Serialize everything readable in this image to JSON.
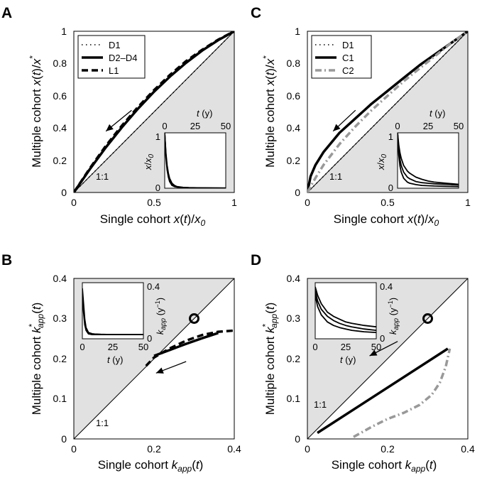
{
  "chart_data": [
    {
      "panel": "A",
      "type": "line",
      "xlabel": "Single cohort x(t)/x0",
      "ylabel": "Multiple cohort x(t)/x*",
      "xlim": [
        0,
        1
      ],
      "ylim": [
        0,
        1
      ],
      "xticks": [
        "0",
        "0.5",
        "1"
      ],
      "yticks": [
        "0",
        "0.2",
        "0.4",
        "0.6",
        "0.8",
        "1"
      ],
      "shade": "below-1:1",
      "ref_label": "1:1",
      "legend": "top-left",
      "series": [
        {
          "name": "D1",
          "style": "dotted",
          "color": "#000000",
          "x": [
            0,
            1
          ],
          "y": [
            0,
            1
          ]
        },
        {
          "name": "D2–D4",
          "style": "solid",
          "color": "#000000",
          "x": [
            0,
            0.1,
            0.2,
            0.3,
            0.4,
            0.5,
            0.6,
            0.7,
            0.8,
            0.9,
            1.0
          ],
          "y": [
            0,
            0.145,
            0.28,
            0.405,
            0.52,
            0.625,
            0.72,
            0.805,
            0.88,
            0.945,
            1.0
          ]
        },
        {
          "name": "L1",
          "style": "dashed",
          "color": "#000000",
          "x": [
            0,
            0.1,
            0.2,
            0.3,
            0.4,
            0.5,
            0.6,
            0.7,
            0.8,
            0.9,
            1.0
          ],
          "y": [
            0,
            0.15,
            0.29,
            0.415,
            0.53,
            0.635,
            0.73,
            0.815,
            0.885,
            0.948,
            1.0
          ]
        }
      ],
      "arrow": {
        "from": [
          0.36,
          0.51
        ],
        "to": [
          0.2,
          0.38
        ]
      },
      "inset": {
        "xlabel": "t (y)",
        "ylabel": "x/x0",
        "xlim": [
          0,
          50
        ],
        "ylim": [
          0,
          1
        ],
        "xticks": [
          "0",
          "25",
          "50"
        ],
        "yticks": [
          "0",
          "1"
        ],
        "series": [
          {
            "x": [
              0,
              1,
              2,
              3,
              4,
              6,
              8,
              10,
              15,
              20,
              30,
              40,
              50
            ],
            "y": [
              1,
              0.64,
              0.41,
              0.27,
              0.18,
              0.09,
              0.05,
              0.03,
              0.015,
              0.01,
              0.006,
              0.004,
              0.003
            ]
          },
          {
            "x": [
              0,
              1,
              2,
              3,
              4,
              6,
              8,
              10,
              15,
              20,
              30,
              40,
              50
            ],
            "y": [
              1,
              0.6,
              0.37,
              0.23,
              0.15,
              0.07,
              0.04,
              0.025,
              0.012,
              0.008,
              0.005,
              0.003,
              0.002
            ]
          },
          {
            "x": [
              0,
              1,
              2,
              3,
              4,
              6,
              8,
              10,
              15,
              20,
              30,
              40,
              50
            ],
            "y": [
              1,
              0.56,
              0.33,
              0.2,
              0.12,
              0.05,
              0.03,
              0.02,
              0.01,
              0.006,
              0.004,
              0.002,
              0.001
            ]
          }
        ]
      }
    },
    {
      "panel": "C",
      "type": "line",
      "xlabel": "Single cohort x(t)/x0",
      "ylabel": "Multiple cohort x(t)/x*",
      "xlim": [
        0,
        1
      ],
      "ylim": [
        0,
        1
      ],
      "xticks": [
        "0",
        "0.5",
        "1"
      ],
      "yticks": [
        "0",
        "0.2",
        "0.4",
        "0.6",
        "0.8",
        "1"
      ],
      "shade": "below-1:1",
      "ref_label": "1:1",
      "legend": "top-left",
      "series": [
        {
          "name": "D1",
          "style": "dotted",
          "color": "#000000",
          "x": [
            0,
            1
          ],
          "y": [
            0,
            1
          ]
        },
        {
          "name": "C1",
          "style": "solid",
          "color": "#000000",
          "x": [
            0,
            0.02,
            0.05,
            0.1,
            0.2,
            0.3,
            0.4,
            0.5,
            0.6,
            0.7,
            0.8,
            0.9,
            1.0
          ],
          "y": [
            0,
            0.1,
            0.17,
            0.25,
            0.37,
            0.46,
            0.55,
            0.63,
            0.71,
            0.79,
            0.86,
            0.93,
            1.0
          ]
        },
        {
          "name": "C2",
          "style": "dashdot",
          "color": "#999999",
          "x": [
            0,
            0.05,
            0.1,
            0.2,
            0.3,
            0.4,
            0.5,
            0.6,
            0.7,
            0.8,
            0.9,
            1.0
          ],
          "y": [
            0,
            0.09,
            0.17,
            0.3,
            0.41,
            0.51,
            0.6,
            0.69,
            0.77,
            0.85,
            0.93,
            1.0
          ]
        }
      ],
      "arrow": {
        "from": [
          0.3,
          0.51
        ],
        "to": [
          0.16,
          0.38
        ]
      },
      "inset": {
        "xlabel": "t (y)",
        "ylabel": "x/x0",
        "xlim": [
          0,
          50
        ],
        "ylim": [
          0,
          1
        ],
        "xticks": [
          "0",
          "25",
          "50"
        ],
        "yticks": [
          "0",
          "1"
        ],
        "series": [
          {
            "x": [
              0,
              1,
              2,
              3,
              5,
              8,
              10,
              15,
              20,
              25,
              30,
              40,
              50
            ],
            "y": [
              1,
              0.7,
              0.52,
              0.41,
              0.29,
              0.2,
              0.17,
              0.12,
              0.1,
              0.09,
              0.08,
              0.07,
              0.06
            ]
          },
          {
            "x": [
              0,
              1,
              2,
              3,
              5,
              8,
              10,
              15,
              20,
              25,
              30,
              40,
              50
            ],
            "y": [
              1,
              0.6,
              0.4,
              0.29,
              0.18,
              0.11,
              0.09,
              0.065,
              0.05,
              0.045,
              0.04,
              0.035,
              0.03
            ]
          },
          {
            "x": [
              0,
              1,
              2,
              3,
              5,
              8,
              10,
              15,
              20,
              25,
              30,
              40,
              50
            ],
            "y": [
              1,
              0.78,
              0.64,
              0.54,
              0.41,
              0.31,
              0.27,
              0.2,
              0.16,
              0.13,
              0.11,
              0.09,
              0.07
            ]
          }
        ]
      }
    },
    {
      "panel": "B",
      "type": "line",
      "xlabel": "Single cohort kapp(t)",
      "ylabel": "Multiple cohort k*app(t)",
      "xlim": [
        0,
        0.4
      ],
      "ylim": [
        0,
        0.4
      ],
      "xticks": [
        "0",
        "0.2",
        "0.4"
      ],
      "yticks": [
        "0",
        "0.1",
        "0.2",
        "0.3",
        "0.4"
      ],
      "shade": "above-1:1",
      "ref_label": "1:1",
      "marker": {
        "shape": "circle",
        "x": 0.3,
        "y": 0.3
      },
      "series": [
        {
          "style": "solid",
          "color": "#000000",
          "x": [
            0.2,
            0.24,
            0.28,
            0.32,
            0.36
          ],
          "y": [
            0.207,
            0.222,
            0.237,
            0.251,
            0.264
          ]
        },
        {
          "style": "dashed",
          "color": "#000000",
          "x": [
            0.18,
            0.2,
            0.24,
            0.28,
            0.32,
            0.36,
            0.4
          ],
          "y": [
            0.182,
            0.203,
            0.226,
            0.245,
            0.259,
            0.267,
            0.27
          ]
        }
      ],
      "arrow": {
        "from": [
          0.28,
          0.193
        ],
        "to": [
          0.205,
          0.164
        ]
      },
      "inset": {
        "xlabel": "t (y)",
        "ylabel": "kapp (y⁻¹)",
        "xlim": [
          0,
          50
        ],
        "ylim": [
          0,
          0.4
        ],
        "xticks": [
          "0",
          "25",
          "50"
        ],
        "yticks": [
          "0",
          "0.4"
        ],
        "series": [
          {
            "x": [
              0,
              1,
              2,
              3,
              5,
              8,
              10,
              15,
              20,
              50
            ],
            "y": [
              0.3,
              0.19,
              0.1,
              0.06,
              0.035,
              0.03,
              0.03,
              0.03,
              0.03,
              0.03
            ]
          },
          {
            "x": [
              0,
              1,
              2,
              3,
              5,
              8,
              10,
              15,
              20,
              50
            ],
            "y": [
              0.33,
              0.22,
              0.12,
              0.07,
              0.04,
              0.033,
              0.032,
              0.031,
              0.03,
              0.03
            ]
          },
          {
            "x": [
              0,
              1,
              2,
              3,
              5,
              8,
              10,
              15,
              20,
              50
            ],
            "y": [
              0.36,
              0.25,
              0.14,
              0.08,
              0.045,
              0.036,
              0.034,
              0.032,
              0.031,
              0.03
            ]
          }
        ]
      }
    },
    {
      "panel": "D",
      "type": "line",
      "xlabel": "Single cohort kapp(t)",
      "ylabel": "Multiple cohort k*app(t)",
      "xlim": [
        0,
        0.4
      ],
      "ylim": [
        0,
        0.4
      ],
      "xticks": [
        "0",
        "0.2",
        "0.4"
      ],
      "yticks": [
        "0",
        "0.1",
        "0.2",
        "0.3",
        "0.4"
      ],
      "shade": "above-1:1",
      "ref_label": "1:1",
      "marker": {
        "shape": "circle",
        "x": 0.3,
        "y": 0.3
      },
      "series": [
        {
          "style": "solid",
          "color": "#000000",
          "x": [
            0.025,
            0.35
          ],
          "y": [
            0.015,
            0.225
          ]
        },
        {
          "style": "dashdot",
          "color": "#999999",
          "x": [
            0.115,
            0.16,
            0.2,
            0.24,
            0.28,
            0.31,
            0.33,
            0.345,
            0.355
          ],
          "y": [
            0.005,
            0.03,
            0.05,
            0.065,
            0.085,
            0.11,
            0.14,
            0.18,
            0.225
          ]
        }
      ],
      "arrow": {
        "from": [
          0.225,
          0.243
        ],
        "to": [
          0.155,
          0.207
        ]
      },
      "inset": {
        "xlabel": "t (y)",
        "ylabel": "kapp (y⁻¹)",
        "xlim": [
          0,
          50
        ],
        "ylim": [
          0,
          0.4
        ],
        "xticks": [
          "0",
          "25",
          "50"
        ],
        "yticks": [
          "0",
          "0.4"
        ],
        "series": [
          {
            "x": [
              0,
              2,
              5,
              10,
              15,
              20,
              25,
              30,
              40,
              50
            ],
            "y": [
              0.34,
              0.27,
              0.21,
              0.16,
              0.13,
              0.11,
              0.095,
              0.085,
              0.07,
              0.06
            ]
          },
          {
            "x": [
              0,
              2,
              5,
              10,
              15,
              20,
              25,
              30,
              40,
              50
            ],
            "y": [
              0.37,
              0.31,
              0.25,
              0.19,
              0.16,
              0.14,
              0.12,
              0.11,
              0.095,
              0.085
            ]
          },
          {
            "x": [
              0,
              2,
              5,
              10,
              15,
              20,
              25,
              30,
              40,
              50
            ],
            "y": [
              0.31,
              0.23,
              0.17,
              0.12,
              0.095,
              0.08,
              0.07,
              0.06,
              0.05,
              0.045
            ]
          }
        ]
      }
    }
  ]
}
